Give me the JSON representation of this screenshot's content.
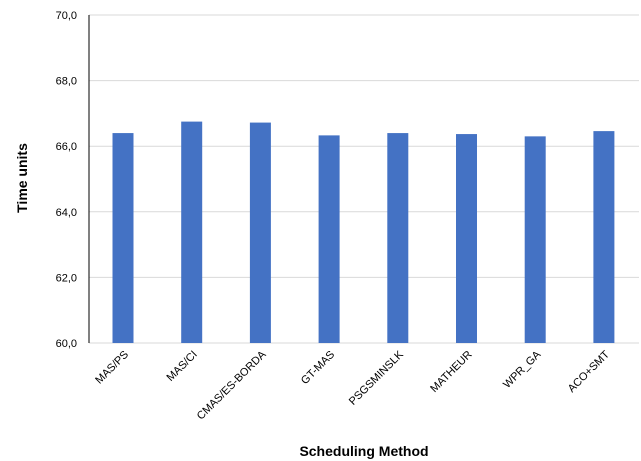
{
  "chart_data": {
    "type": "bar",
    "title": "",
    "xlabel": "Scheduling Method",
    "ylabel": "Time units",
    "categories": [
      "MAS/PS",
      "MAS/CI",
      "CMAS/ES-BORDA",
      "GT-MAS",
      "PSGSMINSLK",
      "MATHEUR",
      "WPR_GA",
      "ACO+SMT"
    ],
    "values": [
      66.4,
      66.75,
      66.72,
      66.33,
      66.4,
      66.37,
      66.3,
      66.46
    ],
    "ylim": [
      60,
      70
    ],
    "yticks": [
      "60,0",
      "62,0",
      "64,0",
      "66,0",
      "68,0",
      "70,0"
    ],
    "ytick_values": [
      60,
      62,
      64,
      66,
      68,
      70
    ],
    "grid": true,
    "legend": "none",
    "bar_color": "#4472C4",
    "grid_color": "#D9D9D9",
    "axis_color": "#000000"
  }
}
